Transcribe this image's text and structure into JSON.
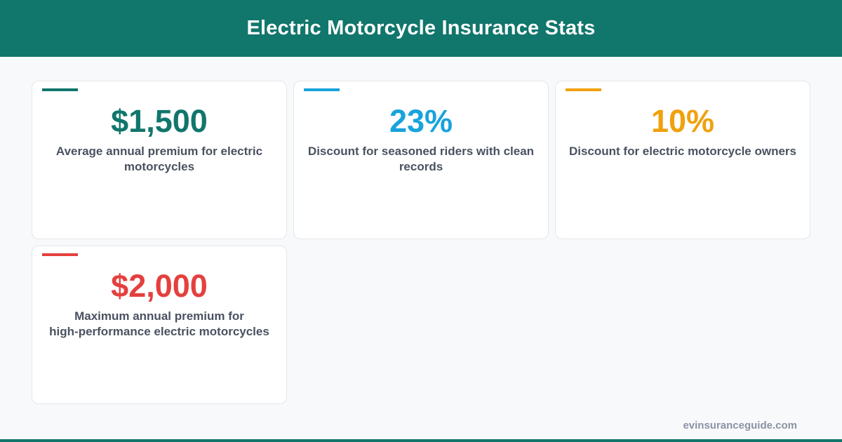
{
  "header": {
    "title": "Electric Motorcycle Insurance Stats"
  },
  "colors": {
    "brand": "#11766c",
    "blue": "#18a3dc",
    "orange": "#f0a10e",
    "red": "#e4403e"
  },
  "cards": [
    {
      "value": "$1,500",
      "line1": "Average annual premium for electric",
      "line2": "motorcycles",
      "color": "#11766c"
    },
    {
      "value": "23%",
      "line1": "Discount for seasoned riders with clean",
      "line2": "records",
      "color": "#18a3dc"
    },
    {
      "value": "10%",
      "line1": "Discount for electric motorcycle owners",
      "line2": "",
      "color": "#f0a10e"
    },
    {
      "value": "$2,000",
      "line1": "Maximum annual premium for",
      "line2": "high-performance electric motorcycles",
      "color": "#e4403e"
    }
  ],
  "footer": {
    "url": "evinsuranceguide.com"
  }
}
